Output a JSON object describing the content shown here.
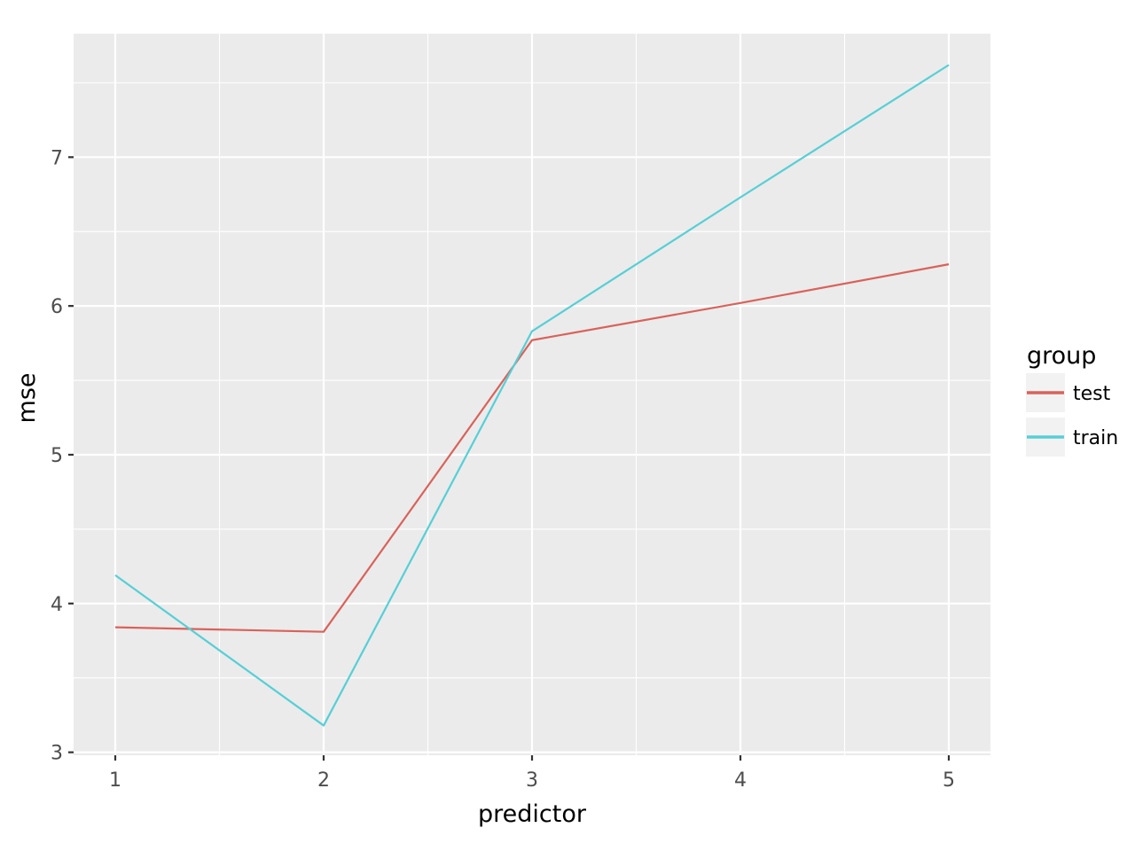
{
  "chart_data": {
    "type": "line",
    "xlabel": "predictor",
    "ylabel": "mse",
    "x": [
      1,
      2,
      3,
      4,
      5
    ],
    "xticks": [
      "1",
      "2",
      "3",
      "4",
      "5"
    ],
    "yticks": [
      "3",
      "4",
      "5",
      "6",
      "7"
    ],
    "xlim": [
      0.8,
      5.2
    ],
    "ylim": [
      2.98,
      7.83
    ],
    "grid": true,
    "legend": {
      "title": "group",
      "placement": "right"
    },
    "series": [
      {
        "name": "test",
        "color": "#d9625a",
        "values": [
          3.84,
          3.81,
          5.77,
          6.02,
          6.28
        ]
      },
      {
        "name": "train",
        "color": "#56cfd6",
        "values": [
          4.19,
          3.18,
          5.83,
          6.73,
          7.62
        ]
      }
    ]
  }
}
